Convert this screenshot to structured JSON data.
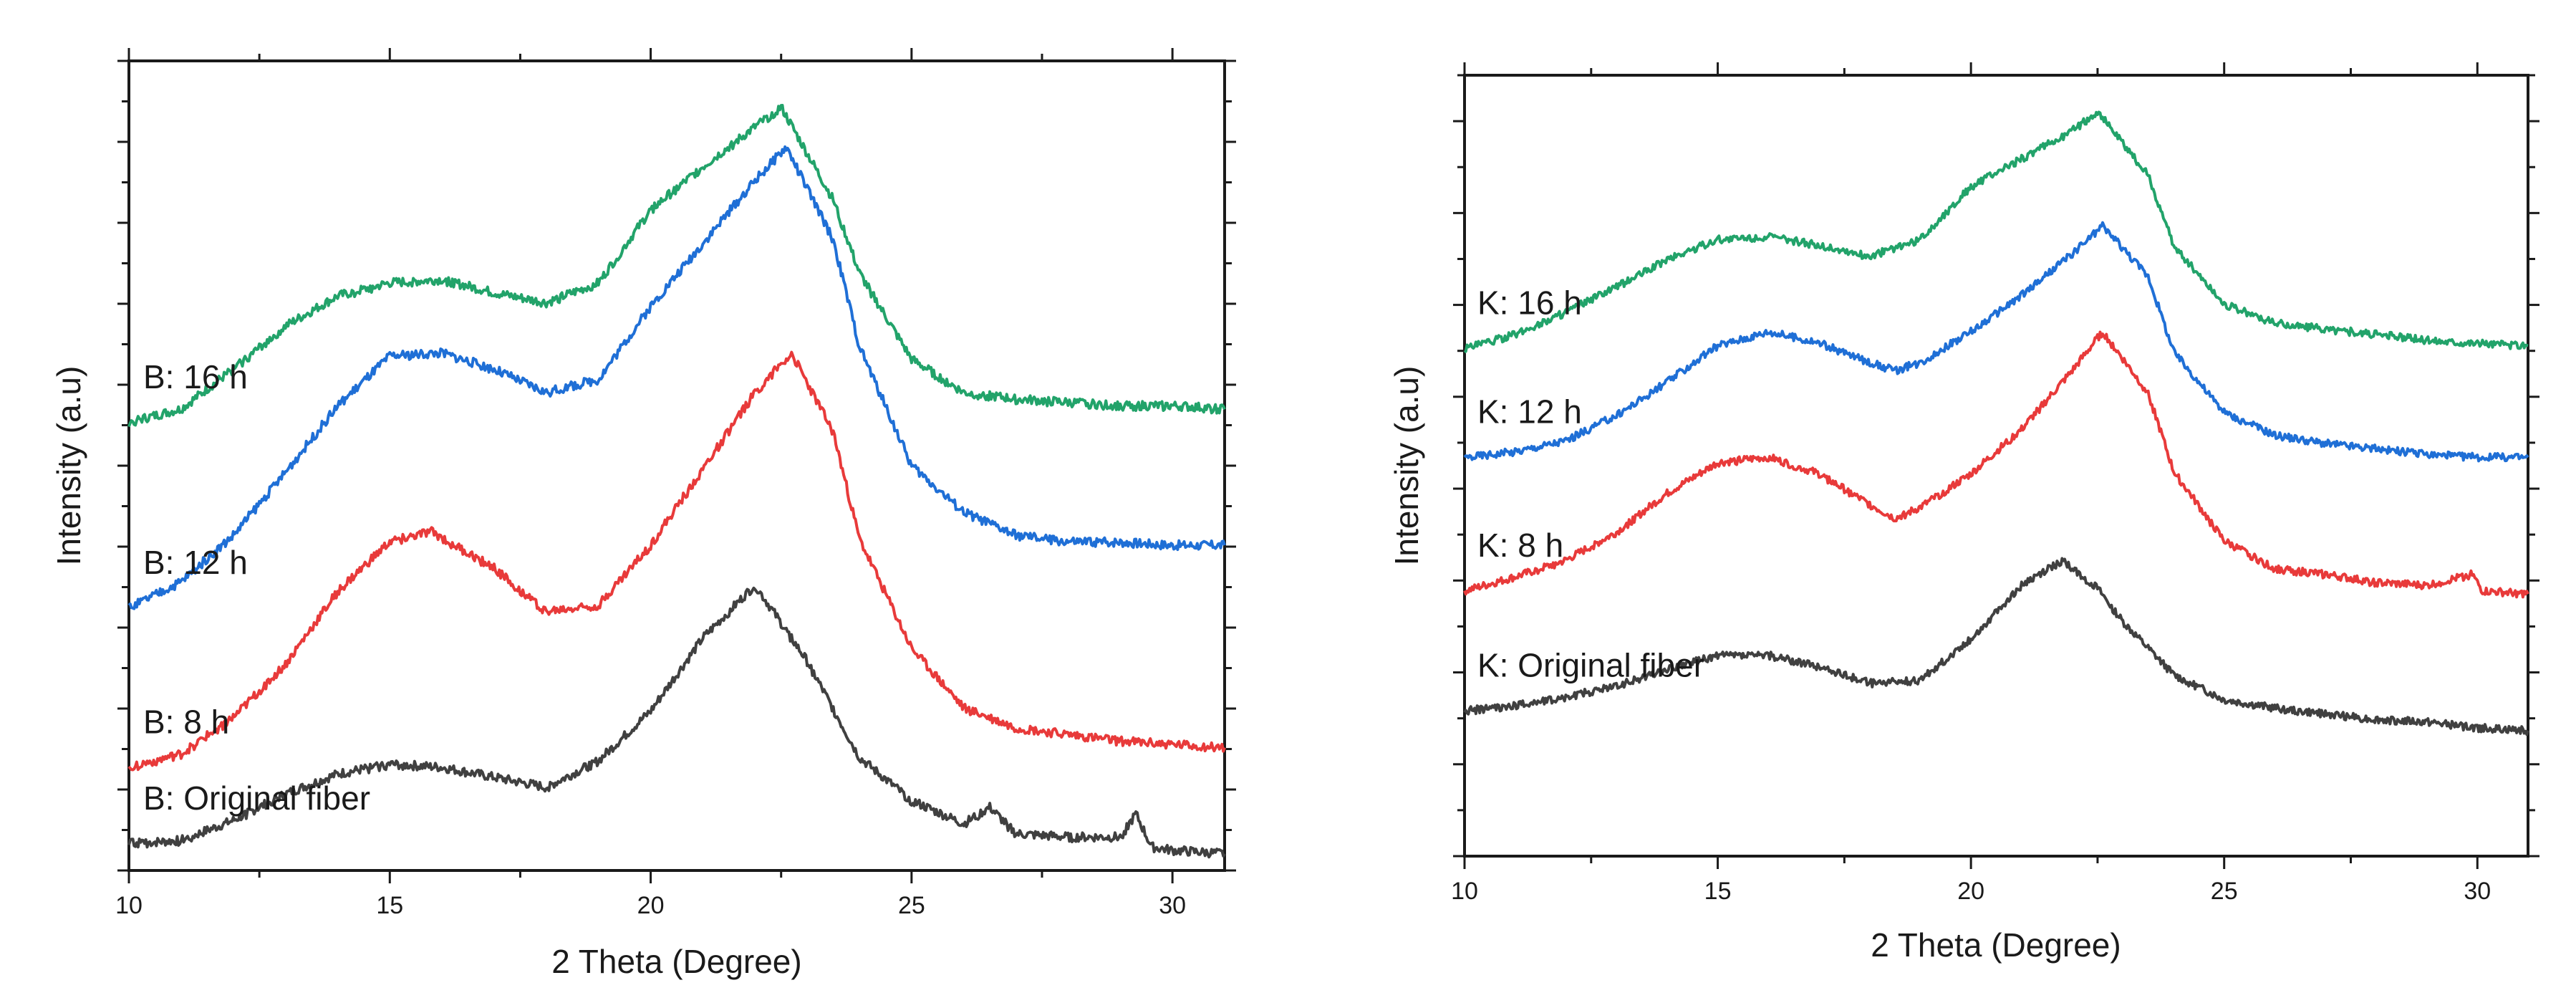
{
  "chart_data": [
    {
      "type": "line",
      "xlabel": "2 Theta (Degree)",
      "ylabel": "Intensity (a.u)",
      "xlim": [
        10,
        31
      ],
      "x_ticks": [
        10,
        15,
        20,
        25,
        30
      ],
      "y_ticks_labeled": false,
      "grid": false,
      "legend": "none; each curve labeled inline at left",
      "series": [
        {
          "name": "B: Original fiber",
          "color": "#404040",
          "points": [
            [
              10,
              0.4
            ],
            [
              11,
              0.45
            ],
            [
              12,
              0.75
            ],
            [
              13,
              1.15
            ],
            [
              14,
              1.45
            ],
            [
              15,
              1.6
            ],
            [
              16,
              1.55
            ],
            [
              17,
              1.4
            ],
            [
              18,
              1.25
            ],
            [
              19,
              1.65
            ],
            [
              20,
              2.4
            ],
            [
              21,
              3.5
            ],
            [
              22,
              4.3
            ],
            [
              23,
              3.15
            ],
            [
              24,
              1.7
            ],
            [
              25,
              1.05
            ],
            [
              26,
              0.7
            ],
            [
              26.5,
              0.95
            ],
            [
              27,
              0.55
            ],
            [
              28,
              0.5
            ],
            [
              29,
              0.5
            ],
            [
              29.3,
              0.85
            ],
            [
              29.6,
              0.35
            ],
            [
              30,
              0.3
            ],
            [
              31,
              0.25
            ]
          ]
        },
        {
          "name": "B: 8 h",
          "color": "#E83A3A",
          "points": [
            [
              10,
              1.55
            ],
            [
              11,
              1.75
            ],
            [
              12,
              2.3
            ],
            [
              13,
              3.1
            ],
            [
              14,
              4.2
            ],
            [
              15,
              4.95
            ],
            [
              15.8,
              5.1
            ],
            [
              17,
              4.55
            ],
            [
              18,
              3.9
            ],
            [
              19,
              4.0
            ],
            [
              20,
              4.9
            ],
            [
              21,
              6.05
            ],
            [
              22,
              7.2
            ],
            [
              22.7,
              7.8
            ],
            [
              23.5,
              6.6
            ],
            [
              24,
              5.0
            ],
            [
              25,
              3.35
            ],
            [
              26,
              2.45
            ],
            [
              27,
              2.15
            ],
            [
              28,
              2.05
            ],
            [
              29,
              1.95
            ],
            [
              30,
              1.9
            ],
            [
              31,
              1.85
            ]
          ]
        },
        {
          "name": "B: 12 h",
          "color": "#1F6FD6",
          "points": [
            [
              10,
              3.95
            ],
            [
              11,
              4.35
            ],
            [
              12,
              5.05
            ],
            [
              13,
              6.0
            ],
            [
              14,
              7.0
            ],
            [
              15,
              7.75
            ],
            [
              16,
              7.8
            ],
            [
              17,
              7.55
            ],
            [
              18,
              7.2
            ],
            [
              19,
              7.4
            ],
            [
              20,
              8.5
            ],
            [
              21,
              9.45
            ],
            [
              22,
              10.4
            ],
            [
              22.6,
              10.9
            ],
            [
              23.5,
              9.5
            ],
            [
              24,
              7.9
            ],
            [
              25,
              6.1
            ],
            [
              26,
              5.4
            ],
            [
              27,
              5.05
            ],
            [
              28,
              4.95
            ],
            [
              29,
              4.95
            ],
            [
              30,
              4.9
            ],
            [
              31,
              4.9
            ]
          ]
        },
        {
          "name": "B: 16 h",
          "color": "#22A36A",
          "points": [
            [
              10,
              6.75
            ],
            [
              11,
              6.95
            ],
            [
              12,
              7.55
            ],
            [
              13,
              8.2
            ],
            [
              14,
              8.65
            ],
            [
              15,
              8.85
            ],
            [
              16,
              8.9
            ],
            [
              17,
              8.7
            ],
            [
              18,
              8.55
            ],
            [
              19,
              8.85
            ],
            [
              20,
              9.95
            ],
            [
              21,
              10.6
            ],
            [
              22,
              11.2
            ],
            [
              22.5,
              11.5
            ],
            [
              23.5,
              10.1
            ],
            [
              24,
              9.0
            ],
            [
              25,
              7.7
            ],
            [
              26,
              7.2
            ],
            [
              27,
              7.1
            ],
            [
              28,
              7.05
            ],
            [
              29,
              7.0
            ],
            [
              30,
              7.0
            ],
            [
              31,
              6.95
            ]
          ]
        }
      ]
    },
    {
      "type": "line",
      "xlabel": "2 Theta (Degree)",
      "ylabel": "Intensity (a.u)",
      "xlim": [
        10,
        31
      ],
      "x_ticks": [
        10,
        15,
        20,
        25,
        30
      ],
      "y_ticks_labeled": false,
      "grid": false,
      "legend": "none; each curve labeled inline at left",
      "series": [
        {
          "name": "K: Original fiber",
          "color": "#404040",
          "points": [
            [
              10,
              1.1
            ],
            [
              11,
              1.2
            ],
            [
              12,
              1.35
            ],
            [
              13,
              1.55
            ],
            [
              14,
              1.85
            ],
            [
              15,
              2.1
            ],
            [
              16,
              2.1
            ],
            [
              17,
              1.9
            ],
            [
              18,
              1.6
            ],
            [
              19,
              1.65
            ],
            [
              20,
              2.4
            ],
            [
              21,
              3.35
            ],
            [
              21.8,
              3.8
            ],
            [
              22.5,
              3.3
            ],
            [
              23,
              2.7
            ],
            [
              24,
              1.75
            ],
            [
              25,
              1.3
            ],
            [
              26,
              1.15
            ],
            [
              27,
              1.05
            ],
            [
              28,
              0.95
            ],
            [
              29,
              0.9
            ],
            [
              30,
              0.8
            ],
            [
              31,
              0.75
            ]
          ]
        },
        {
          "name": "K: 8 h",
          "color": "#E83A3A",
          "points": [
            [
              10,
              3.25
            ],
            [
              11,
              3.5
            ],
            [
              12,
              3.8
            ],
            [
              13,
              4.3
            ],
            [
              14,
              5.0
            ],
            [
              15,
              5.55
            ],
            [
              16,
              5.65
            ],
            [
              17,
              5.35
            ],
            [
              18,
              4.8
            ],
            [
              18.5,
              4.55
            ],
            [
              19,
              4.75
            ],
            [
              20,
              5.35
            ],
            [
              21,
              6.15
            ],
            [
              22,
              7.2
            ],
            [
              22.6,
              7.9
            ],
            [
              23.5,
              6.8
            ],
            [
              24,
              5.4
            ],
            [
              25,
              4.15
            ],
            [
              26,
              3.65
            ],
            [
              27,
              3.55
            ],
            [
              28,
              3.4
            ],
            [
              29,
              3.35
            ],
            [
              29.9,
              3.55
            ],
            [
              30.1,
              3.25
            ],
            [
              31,
              3.2
            ]
          ]
        },
        {
          "name": "K: 12 h",
          "color": "#1F6FD6",
          "points": [
            [
              10,
              5.65
            ],
            [
              11,
              5.75
            ],
            [
              12,
              5.95
            ],
            [
              13,
              6.4
            ],
            [
              14,
              7.0
            ],
            [
              15,
              7.65
            ],
            [
              16,
              7.9
            ],
            [
              17,
              7.7
            ],
            [
              18,
              7.35
            ],
            [
              18.5,
              7.2
            ],
            [
              19,
              7.35
            ],
            [
              20,
              7.9
            ],
            [
              21,
              8.55
            ],
            [
              22,
              9.3
            ],
            [
              22.6,
              9.8
            ],
            [
              23.5,
              8.9
            ],
            [
              24,
              7.55
            ],
            [
              25,
              6.45
            ],
            [
              26,
              6.05
            ],
            [
              27,
              5.9
            ],
            [
              28,
              5.8
            ],
            [
              29,
              5.7
            ],
            [
              30,
              5.65
            ],
            [
              31,
              5.65
            ]
          ]
        },
        {
          "name": "K: 16 h",
          "color": "#22A36A",
          "points": [
            [
              10,
              7.6
            ],
            [
              11,
              7.85
            ],
            [
              12,
              8.25
            ],
            [
              13,
              8.7
            ],
            [
              14,
              9.2
            ],
            [
              15,
              9.55
            ],
            [
              16,
              9.6
            ],
            [
              17,
              9.45
            ],
            [
              18,
              9.25
            ],
            [
              19,
              9.55
            ],
            [
              20,
              10.5
            ],
            [
              21,
              11.0
            ],
            [
              22,
              11.5
            ],
            [
              22.5,
              11.85
            ],
            [
              23.5,
              10.7
            ],
            [
              24,
              9.45
            ],
            [
              25,
              8.4
            ],
            [
              26,
              8.05
            ],
            [
              27,
              7.95
            ],
            [
              28,
              7.85
            ],
            [
              29,
              7.75
            ],
            [
              30,
              7.7
            ],
            [
              31,
              7.65
            ]
          ]
        }
      ]
    }
  ]
}
